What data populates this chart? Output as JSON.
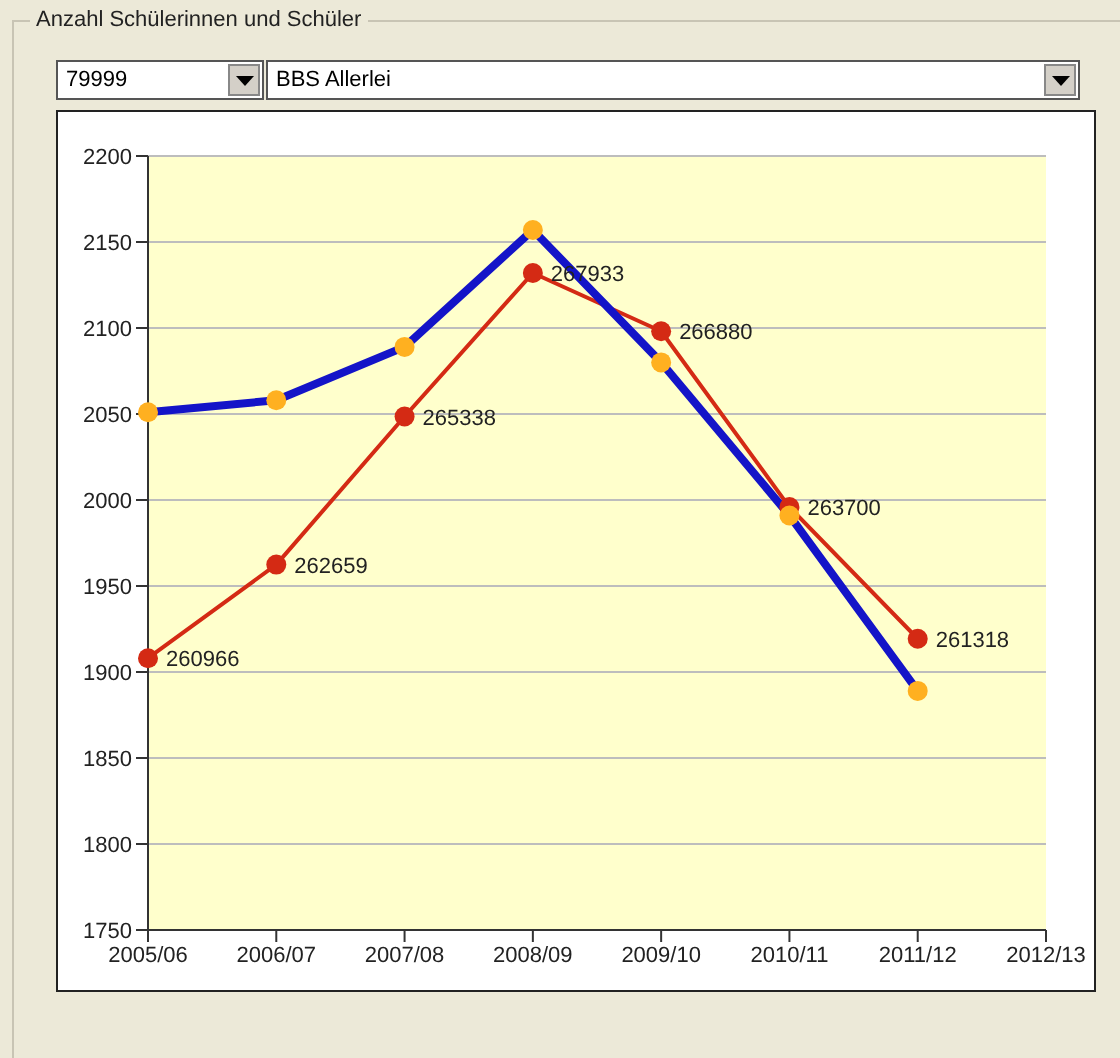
{
  "chart_data": {
    "type": "line",
    "title": "Anzahl Schülerinnen und Schüler",
    "annotations": [
      "79999",
      "BBS Allerlei"
    ],
    "categories": [
      "2005/06",
      "2006/07",
      "2007/08",
      "2008/09",
      "2009/10",
      "2010/11",
      "2011/12",
      "2012/13"
    ],
    "series": [
      {
        "color": "#1414c8",
        "colors": [
          "#ffb020",
          "#ffb020",
          "#ffb020",
          "#ffb020",
          "#ffb020",
          "#ffb020",
          "#ffb020",
          null
        ],
        "values": [
          2051,
          2058,
          2089,
          2157,
          2080,
          1991,
          1889,
          null
        ]
      },
      {
        "color": "#d42a14",
        "axis": "y2",
        "values": [
          260966,
          262659,
          265338,
          267933,
          266880,
          263700,
          261318,
          null
        ],
        "value_labels": [
          "260966",
          "262659",
          "265338",
          "267933",
          "266880",
          "263700",
          "261318",
          null
        ]
      }
    ],
    "ylim": [
      1750,
      2200
    ],
    "yticks": [
      1750,
      1800,
      1850,
      1900,
      1950,
      2000,
      2050,
      2100,
      2150,
      2200
    ],
    "y2lim": [
      256050,
      270050
    ],
    "grid": "y",
    "marker": "circle",
    "legend": false
  }
}
